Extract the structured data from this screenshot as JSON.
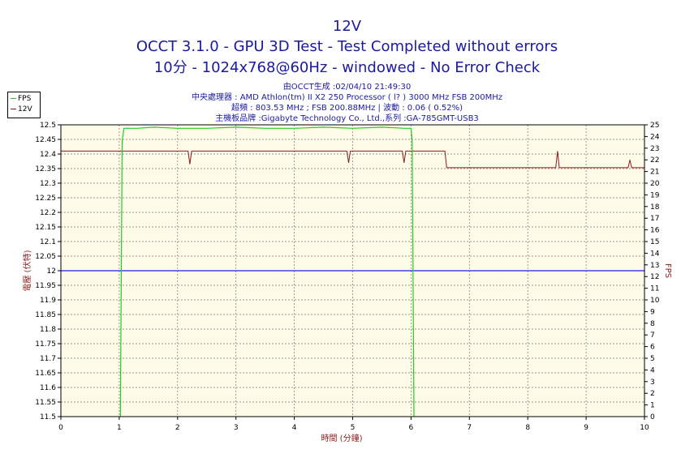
{
  "header": {
    "title": "12V",
    "subtitle1": "OCCT 3.1.0 - GPU 3D Test - Test Completed without errors",
    "subtitle2": "10分 - 1024x768@60Hz - windowed - No Error Check",
    "info1": "由OCCT生成 :02/04/10 21:49:30",
    "info2": "中央處理器 : AMD Athlon(tm) II X2 250 Processor (  l? ) 3000 MHz FSB 200MHz",
    "info3": "超頻 : 803.53 MHz ; FSB 200.88MHz | 波動 : 0.06 ( 0.52%)",
    "info4": "主機板品牌 :Gigabyte Technology Co., Ltd.,系列 :GA-785GMT-USB3"
  },
  "legend": {
    "items": [
      "FPS",
      "12V"
    ],
    "placement": "top-left outside"
  },
  "colors": {
    "fps": "#22cc22",
    "v12": "#8b1a1a",
    "ref": "#1a1aff",
    "plot_bg": "#fefbe8",
    "grid": "#777777",
    "title": "#1a1aa0"
  },
  "chart_data": {
    "type": "line",
    "xlabel": "時間 (分鐘)",
    "ylabel_left": "電壓 (伏特)",
    "ylabel_right": "FPS",
    "xlim": [
      0,
      10
    ],
    "ylim_left": [
      11.5,
      12.5
    ],
    "ylim_right": [
      0,
      25
    ],
    "x_ticks": [
      "0",
      "1",
      "2",
      "3",
      "4",
      "5",
      "6",
      "7",
      "8",
      "9",
      "10"
    ],
    "y_left_ticks": [
      "11.5",
      "11.55",
      "11.6",
      "11.65",
      "11.7",
      "11.75",
      "11.8",
      "11.85",
      "11.9",
      "11.95",
      "12",
      "12.05",
      "12.1",
      "12.15",
      "12.2",
      "12.25",
      "12.3",
      "12.35",
      "12.4",
      "12.45",
      "12.5"
    ],
    "y_right_ticks": [
      "0",
      "1",
      "2",
      "3",
      "4",
      "5",
      "6",
      "7",
      "8",
      "9",
      "10",
      "11",
      "12",
      "13",
      "14",
      "15",
      "16",
      "17",
      "18",
      "19",
      "20",
      "21",
      "22",
      "23",
      "24",
      "25"
    ],
    "grid": true,
    "reference_line": {
      "y": 12.0
    },
    "series": [
      {
        "name": "12V",
        "axis": "left",
        "x": [
          0,
          2.18,
          2.21,
          2.24,
          4.9,
          4.93,
          4.96,
          5.85,
          5.88,
          5.91,
          6.58,
          6.61,
          8.48,
          8.51,
          8.54,
          9.72,
          9.75,
          9.78,
          10
        ],
        "y": [
          12.41,
          12.41,
          12.365,
          12.41,
          12.41,
          12.37,
          12.41,
          12.41,
          12.37,
          12.41,
          12.41,
          12.353,
          12.353,
          12.41,
          12.353,
          12.353,
          12.38,
          12.353,
          12.353
        ]
      },
      {
        "name": "FPS",
        "axis": "right",
        "x": [
          1.02,
          1.05,
          1.08,
          1.3,
          1.6,
          2.0,
          2.5,
          3.0,
          3.5,
          4.0,
          4.5,
          5.0,
          5.5,
          5.9,
          6.0,
          6.02,
          6.05
        ],
        "y": [
          0,
          23.6,
          24.7,
          24.7,
          24.8,
          24.7,
          24.7,
          24.8,
          24.7,
          24.7,
          24.8,
          24.7,
          24.8,
          24.7,
          24.7,
          23.6,
          0
        ]
      }
    ]
  }
}
